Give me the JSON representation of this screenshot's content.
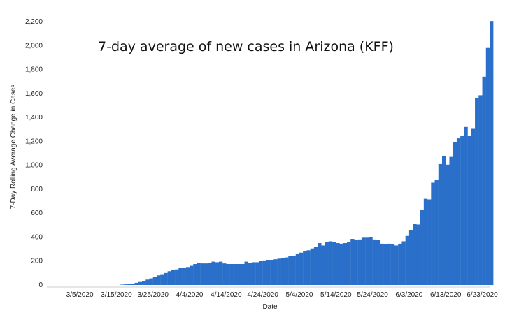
{
  "chart_data": {
    "type": "bar",
    "title": "7-day average of new cases in Arizona (KFF)",
    "xlabel": "Date",
    "ylabel": "7-Day Rolling Average Change in Cases",
    "ylim": [
      0,
      2200
    ],
    "yticks": [
      0,
      200,
      400,
      600,
      800,
      1000,
      1200,
      1400,
      1600,
      1800,
      2000,
      2200
    ],
    "ytick_labels": [
      "0",
      "200",
      "400",
      "600",
      "800",
      "1,000",
      "1,200",
      "1,400",
      "1,600",
      "1,800",
      "2,000",
      "2,200"
    ],
    "xtick_labels": [
      "3/5/2020",
      "3/15/2020",
      "3/25/2020",
      "4/4/2020",
      "4/14/2020",
      "4/24/2020",
      "5/4/2020",
      "5/14/2020",
      "5/24/2020",
      "6/3/2020",
      "6/13/2020",
      "6/23/2020"
    ],
    "x_start": "2/25/2020",
    "x_end": "6/25/2020",
    "first_bar_date": "3/16/2020",
    "color": "#2a6fc9",
    "grid": false,
    "legend": "none",
    "values": [
      3,
      5,
      8,
      12,
      18,
      25,
      35,
      45,
      55,
      65,
      80,
      90,
      100,
      115,
      125,
      130,
      140,
      145,
      150,
      160,
      175,
      185,
      180,
      180,
      185,
      195,
      190,
      195,
      180,
      175,
      175,
      175,
      175,
      175,
      195,
      185,
      190,
      190,
      200,
      205,
      210,
      210,
      215,
      220,
      225,
      230,
      240,
      245,
      260,
      270,
      285,
      290,
      305,
      320,
      350,
      330,
      360,
      365,
      360,
      350,
      345,
      350,
      360,
      385,
      375,
      380,
      395,
      395,
      400,
      380,
      375,
      345,
      340,
      345,
      340,
      330,
      345,
      365,
      410,
      460,
      510,
      505,
      630,
      720,
      715,
      855,
      880,
      1010,
      1080,
      1005,
      1070,
      1195,
      1225,
      1245,
      1320,
      1245,
      1310,
      1560,
      1585,
      1740,
      1980,
      2205
    ]
  }
}
